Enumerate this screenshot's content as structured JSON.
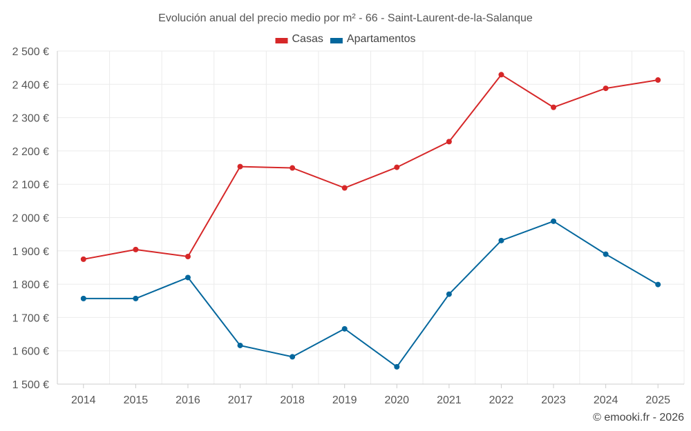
{
  "chart_data": {
    "type": "line",
    "title": "Evolución anual del precio medio por m² - 66 - Saint-Laurent-de-la-Salanque",
    "xlabel": "",
    "ylabel": "",
    "categories": [
      "2014",
      "2015",
      "2016",
      "2017",
      "2018",
      "2019",
      "2020",
      "2021",
      "2022",
      "2023",
      "2024",
      "2025"
    ],
    "ylim": [
      1500,
      2500
    ],
    "yticks": [
      1500,
      1600,
      1700,
      1800,
      1900,
      2000,
      2100,
      2200,
      2300,
      2400,
      2500
    ],
    "ytick_labels": [
      "1 500 €",
      "1 600 €",
      "1 700 €",
      "1 800 €",
      "1 900 €",
      "2 000 €",
      "2 100 €",
      "2 200 €",
      "2 300 €",
      "2 400 €",
      "2 500 €"
    ],
    "grid": true,
    "legend_position": "top-center",
    "series": [
      {
        "name": "Casas",
        "color": "#d62728",
        "values": [
          1875,
          1904,
          1883,
          2153,
          2149,
          2089,
          2151,
          2228,
          2429,
          2331,
          2388,
          2413
        ]
      },
      {
        "name": "Apartamentos",
        "color": "#04679d",
        "values": [
          1757,
          1757,
          1820,
          1616,
          1582,
          1666,
          1552,
          1770,
          1931,
          1989,
          1890,
          1799
        ]
      }
    ]
  },
  "credit": "© emooki.fr - 2026"
}
